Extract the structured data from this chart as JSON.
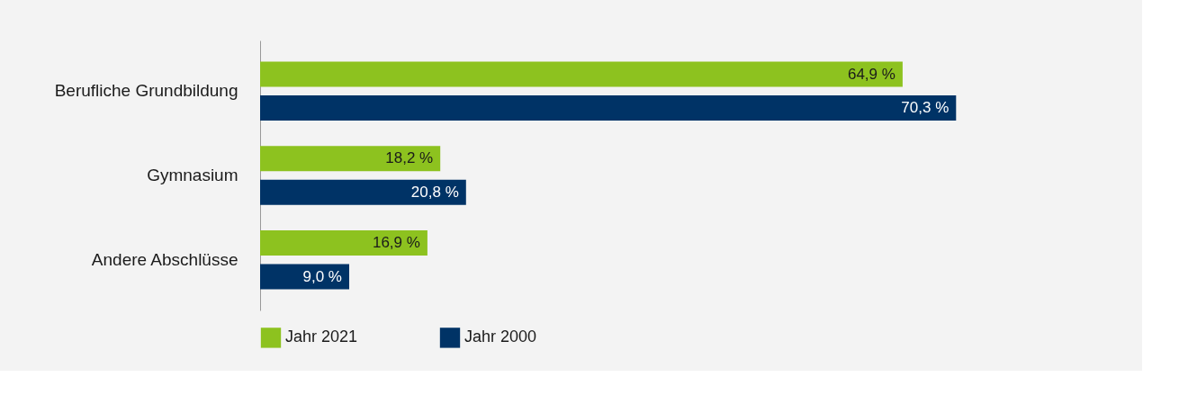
{
  "chart_data": {
    "type": "bar",
    "orientation": "horizontal",
    "categories": [
      "Berufliche Grundbildung",
      "Gymnasium",
      "Andere Abschlüsse"
    ],
    "series": [
      {
        "name": "Jahr 2021",
        "color": "#8dc21f",
        "values": [
          64.9,
          18.2,
          16.9
        ],
        "value_labels": [
          "64,9 %",
          "18,2 %",
          "16,9 %"
        ]
      },
      {
        "name": "Jahr 2000",
        "color": "#003366",
        "values": [
          70.3,
          20.8,
          9.0
        ],
        "value_labels": [
          "70,3 %",
          "20,8 %",
          "9,0 %"
        ]
      }
    ],
    "legend": "bottom",
    "tick_labels": "y"
  }
}
